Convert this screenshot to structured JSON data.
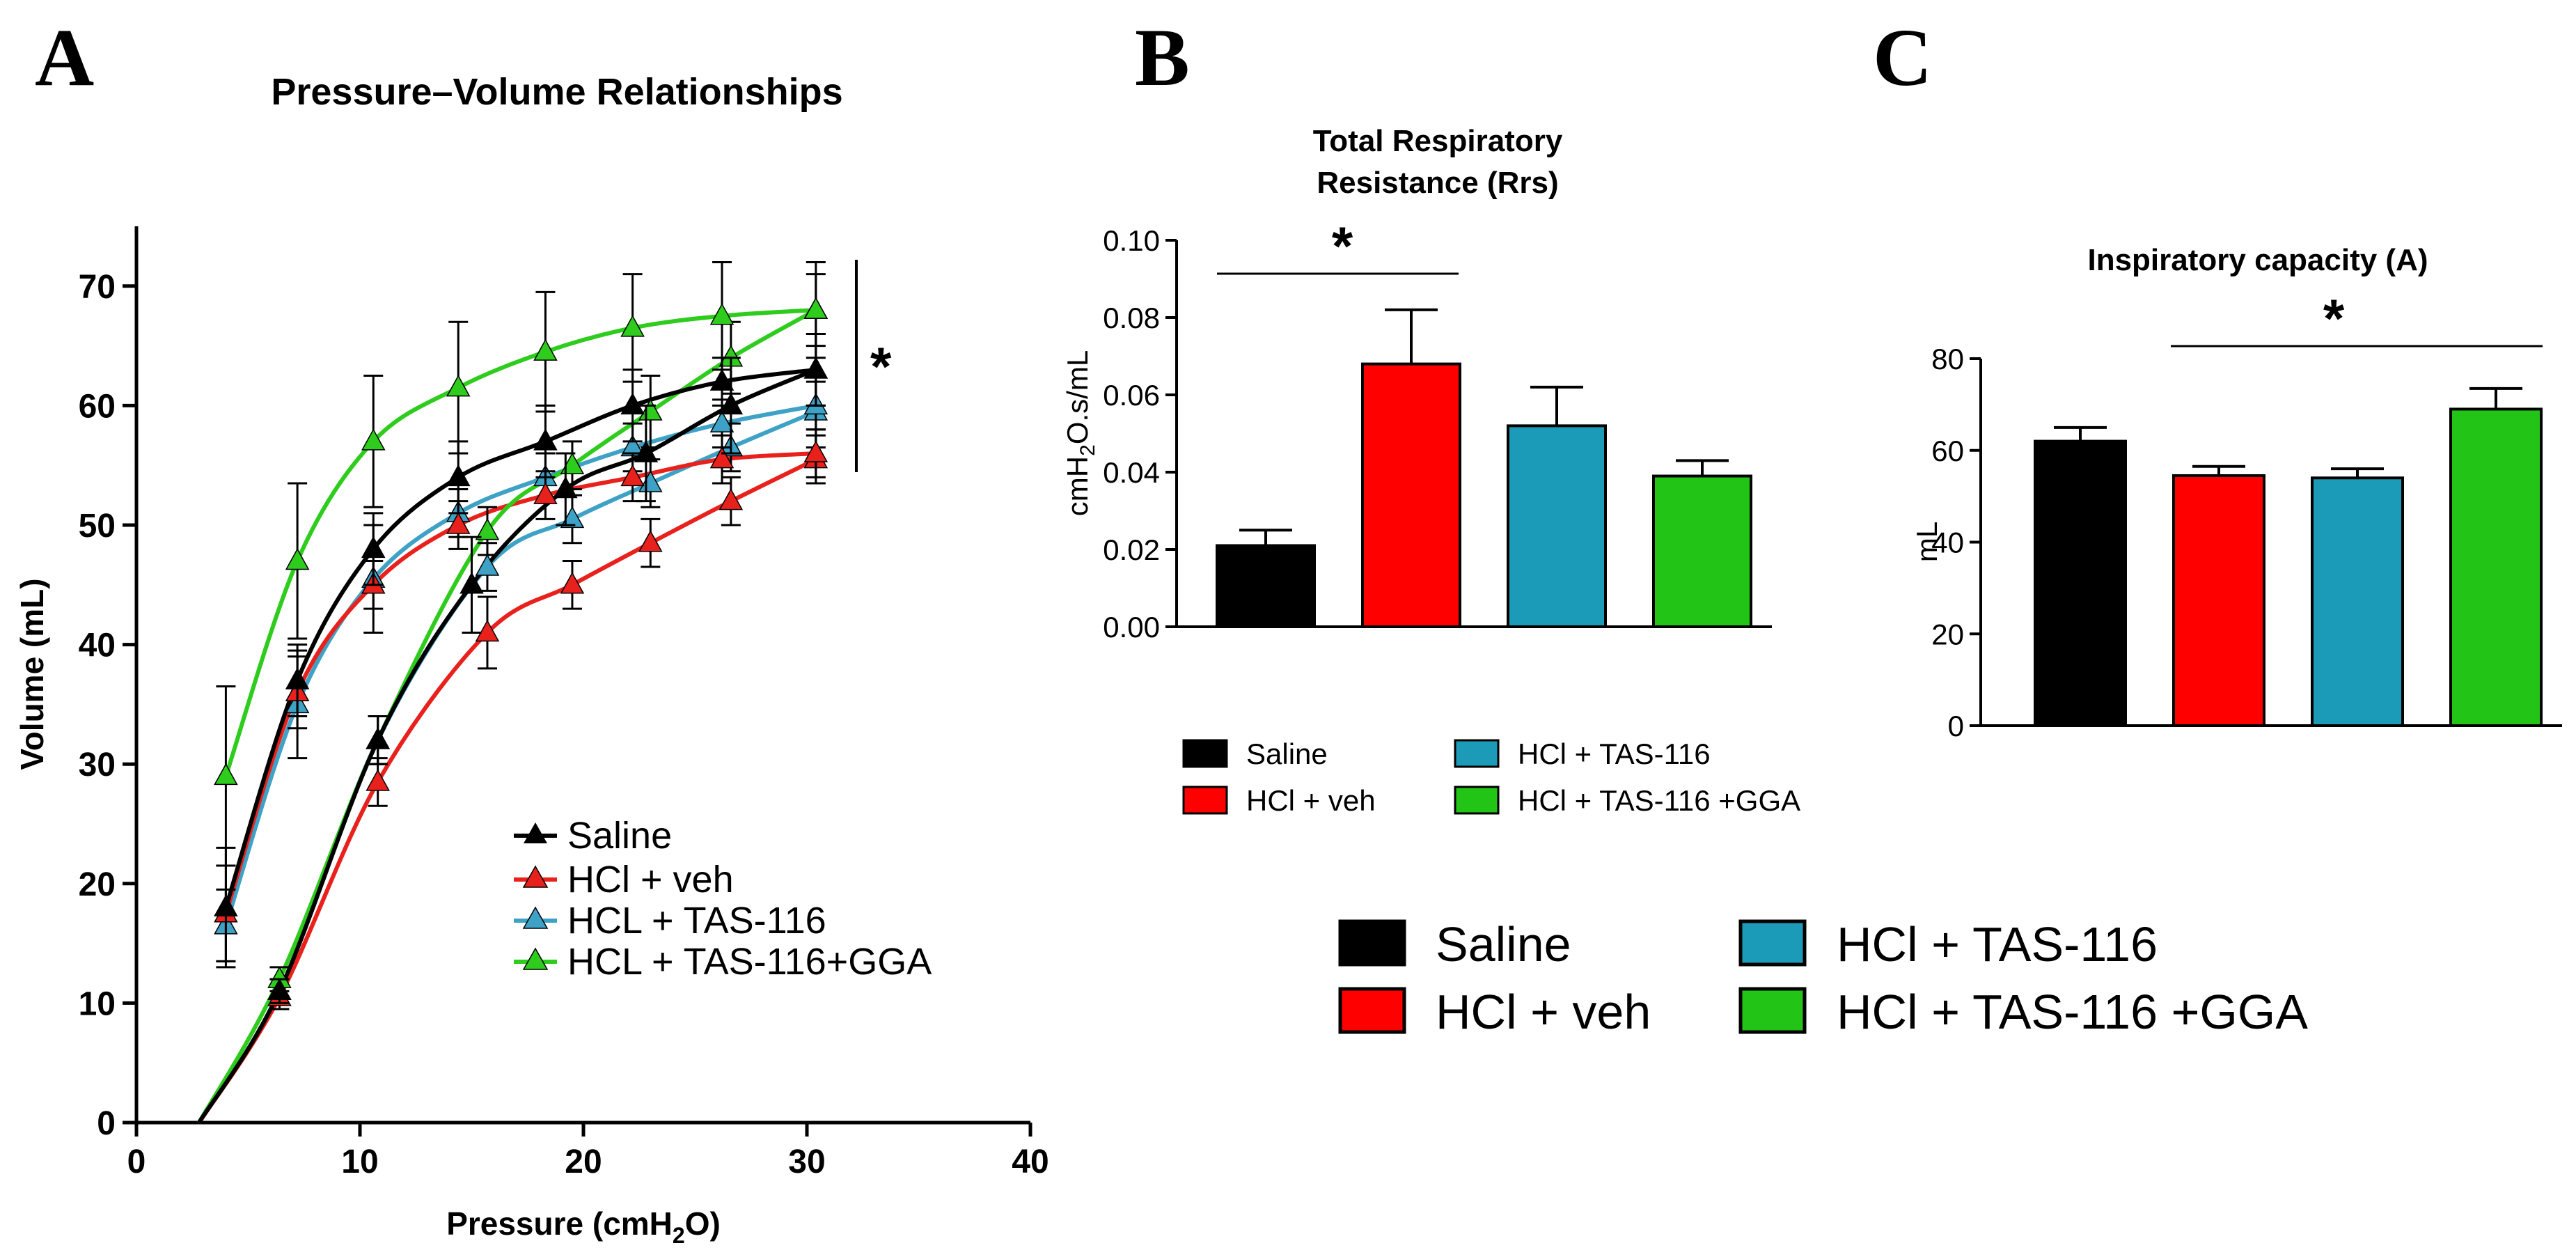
{
  "chart_data": [
    {
      "panel": "A",
      "type": "line",
      "title": "Pressure–Volume Relationships",
      "xlabel": "Pressure (cmH",
      "xlabel_sub": "2",
      "xlabel_end": "O)",
      "ylabel": "Volume (mL)",
      "xlim": [
        0,
        40
      ],
      "ylim": [
        0,
        75
      ],
      "xticks": [
        "0",
        "10",
        "20",
        "30",
        "40"
      ],
      "yticks": [
        "0",
        "10",
        "20",
        "30",
        "40",
        "50",
        "60",
        "70"
      ],
      "significance": "*",
      "legend_position": "bottom-right",
      "series": [
        {
          "name": "Saline",
          "color": "#000000",
          "marker": "triangle",
          "inflation": {
            "x": [
              2.8,
              6.4,
              10.8,
              15.0,
              19.2,
              22.8,
              26.6,
              30.4
            ],
            "y": [
              0,
              11,
              32,
              45,
              53,
              56,
              60,
              63
            ],
            "err": [
              0,
              1,
              2,
              4,
              3,
              4,
              4,
              3
            ]
          },
          "deflation": {
            "x": [
              30.4,
              26.2,
              22.2,
              18.3,
              14.4,
              10.6,
              7.2,
              4.0
            ],
            "y": [
              63,
              62,
              60,
              57,
              54,
              48,
              37,
              18
            ],
            "err": [
              3,
              2,
              3,
              3,
              3,
              3,
              3,
              5
            ]
          }
        },
        {
          "name": "HCl + veh",
          "color": "#e8211d",
          "marker": "triangle",
          "inflation": {
            "x": [
              2.8,
              6.4,
              10.8,
              15.7,
              19.5,
              23.0,
              26.6,
              30.4
            ],
            "y": [
              0,
              10.5,
              28.5,
              41,
              45,
              48.5,
              52,
              55.5
            ],
            "err": [
              0,
              1,
              2,
              3,
              2,
              2,
              2,
              2
            ]
          },
          "deflation": {
            "x": [
              30.4,
              26.2,
              22.2,
              18.3,
              14.4,
              10.6,
              7.2,
              4.0
            ],
            "y": [
              56,
              55.5,
              54,
              52.5,
              50,
              45,
              36,
              17.5
            ],
            "err": [
              2,
              2,
              2,
              2,
              2,
              2,
              3,
              4
            ]
          }
        },
        {
          "name": "HCL + TAS-116",
          "color": "#3ea2c6",
          "marker": "triangle",
          "inflation": {
            "x": [
              2.8,
              6.4,
              10.8,
              15.7,
              19.5,
              23.0,
              26.6,
              30.4
            ],
            "y": [
              0,
              11,
              32,
              46.5,
              50.5,
              53.5,
              56.5,
              59.5
            ],
            "err": [
              0,
              1,
              2,
              2,
              2,
              2,
              2,
              3
            ]
          },
          "deflation": {
            "x": [
              30.4,
              26.2,
              22.2,
              18.3,
              14.4,
              10.6,
              7.2,
              4.0
            ],
            "y": [
              60,
              58.5,
              56.5,
              54,
              51,
              45.5,
              35,
              16.5
            ],
            "err": [
              2,
              2,
              2,
              2,
              2,
              4.5,
              4.5,
              3
            ]
          }
        },
        {
          "name": "HCL + TAS-116+GGA",
          "color": "#2ecc1c",
          "marker": "triangle",
          "inflation": {
            "x": [
              2.8,
              6.4,
              10.8,
              15.7,
              19.5,
              23.0,
              26.6,
              30.4
            ],
            "y": [
              0,
              12,
              32,
              49.5,
              55,
              59.5,
              64,
              68
            ],
            "err": [
              0,
              1,
              2,
              2,
              2,
              3,
              3,
              3
            ]
          },
          "deflation": {
            "x": [
              30.4,
              26.2,
              22.2,
              18.3,
              14.4,
              10.6,
              7.2,
              4.0
            ],
            "y": [
              68,
              67.5,
              66.5,
              64.5,
              61.5,
              57,
              47,
              29
            ],
            "err": [
              4,
              4.5,
              4.5,
              5,
              5.5,
              5.5,
              6.5,
              7.5
            ]
          }
        }
      ]
    },
    {
      "panel": "B",
      "type": "bar",
      "title_lines": [
        "Total  Respiratory",
        "Resistance (Rrs)"
      ],
      "ylabel": "cmH",
      "ylabel_sub": "2",
      "ylabel_end": "O.s/mL",
      "ylim": [
        0,
        0.1
      ],
      "yticks": [
        "0.00",
        "0.02",
        "0.04",
        "0.06",
        "0.08",
        "0.10"
      ],
      "categories": [
        "Saline",
        "HCl + veh",
        "HCl + TAS-116",
        "HCl + TAS-116 +GGA"
      ],
      "values": [
        0.021,
        0.068,
        0.052,
        0.039
      ],
      "errors": [
        0.004,
        0.014,
        0.01,
        0.004
      ],
      "colors": [
        "#000000",
        "#ff0000",
        "#1b9bb8",
        "#22c416"
      ],
      "significance": "*",
      "legend_position": "bottom"
    },
    {
      "panel": "C",
      "type": "bar",
      "title": "Inspiratory capacity (A)",
      "ylabel": "mL",
      "ylim": [
        0,
        80
      ],
      "yticks": [
        "0",
        "20",
        "40",
        "60",
        "80"
      ],
      "categories": [
        "Saline",
        "HCl + veh",
        "HCl + TAS-116",
        "HCl + TAS-116 +GGA"
      ],
      "values": [
        62,
        54.5,
        54,
        69
      ],
      "errors": [
        3,
        2,
        2,
        4.5
      ],
      "colors": [
        "#000000",
        "#ff0000",
        "#1b9bb8",
        "#22c416"
      ],
      "significance": "*",
      "legend_position": "bottom"
    }
  ],
  "shared_legend": {
    "items": [
      "Saline",
      "HCl + veh",
      "HCl + TAS-116",
      "HCl + TAS-116 +GGA"
    ],
    "colors": [
      "#000000",
      "#ff0000",
      "#1b9bb8",
      "#22c416"
    ]
  }
}
